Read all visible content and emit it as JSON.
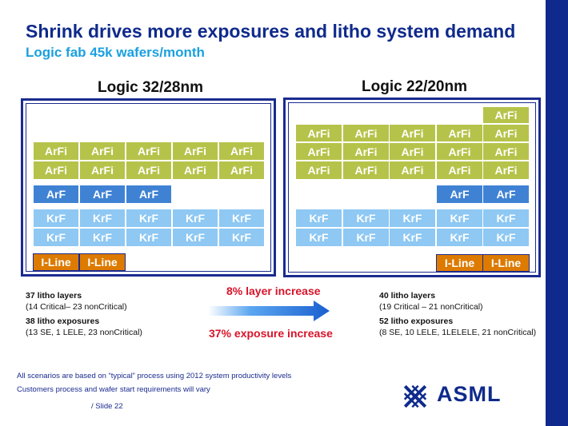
{
  "title": "Shrink drives more exposures and litho system demand",
  "subtitle": "Logic fab 45k wafers/month",
  "left_panel": {
    "title": "Logic 32/28nm",
    "rows": [
      {
        "type": "arfi",
        "cells": [
          "ArFi",
          "ArFi",
          "ArFi",
          "ArFi",
          "ArFi"
        ]
      },
      {
        "type": "arfi",
        "cells": [
          "ArFi",
          "ArFi",
          "ArFi",
          "ArFi",
          "ArFi"
        ]
      },
      {
        "type": "arf",
        "cells": [
          "ArF",
          "ArF",
          "ArF"
        ]
      },
      {
        "type": "krf",
        "cells": [
          "KrF",
          "KrF",
          "KrF",
          "KrF",
          "KrF"
        ]
      },
      {
        "type": "krf",
        "cells": [
          "KrF",
          "KrF",
          "KrF",
          "KrF",
          "KrF"
        ]
      },
      {
        "type": "iline",
        "cells": [
          "I-Line",
          "I-Line"
        ]
      }
    ],
    "layers_title": "37 litho layers",
    "layers_detail": "(14 Critical– 23 nonCritical)",
    "exposures_title": "38 litho exposures",
    "exposures_detail": "(13 SE, 1 LELE, 23 nonCritical)"
  },
  "right_panel": {
    "title": "Logic 22/20nm",
    "rows": [
      {
        "type": "arfi",
        "cells": [
          "ArFi"
        ]
      },
      {
        "type": "arfi",
        "cells": [
          "ArFi",
          "ArFi",
          "ArFi",
          "ArFi",
          "ArFi"
        ]
      },
      {
        "type": "arfi",
        "cells": [
          "ArFi",
          "ArFi",
          "ArFi",
          "ArFi",
          "ArFi"
        ]
      },
      {
        "type": "arfi",
        "cells": [
          "ArFi",
          "ArFi",
          "ArFi",
          "ArFi",
          "ArFi"
        ]
      },
      {
        "type": "arf",
        "cells": [
          "ArF",
          "ArF"
        ]
      },
      {
        "type": "krf",
        "cells": [
          "KrF",
          "KrF",
          "KrF",
          "KrF",
          "KrF"
        ]
      },
      {
        "type": "krf",
        "cells": [
          "KrF",
          "KrF",
          "KrF",
          "KrF",
          "KrF"
        ]
      },
      {
        "type": "iline",
        "cells": [
          "I-Line",
          "I-Line"
        ]
      }
    ],
    "layers_title": "40 litho layers",
    "layers_detail": "(19 Critical – 21 nonCritical)",
    "exposures_title": "52 litho exposures",
    "exposures_detail": "(8 SE, 10 LELE, 1LELELE, 21 nonCritical)"
  },
  "layer_increase": "8% layer increase",
  "exposure_increase": "37% exposure increase",
  "footnote_1": "All scenarios are based on “typical” process using 2012 system productivity levels",
  "footnote_2": "Customers process and wafer start requirements will vary",
  "slide_label": "/ Slide 22",
  "logo_text": "ASML",
  "colors": {
    "navy": "#0f2a8c",
    "arfi": "#b6c34a",
    "arf": "#3f82d4",
    "krf": "#8ec8f3",
    "iline": "#dd7a00",
    "accent_red": "#d8132a",
    "arrow": "#1a73d9"
  }
}
